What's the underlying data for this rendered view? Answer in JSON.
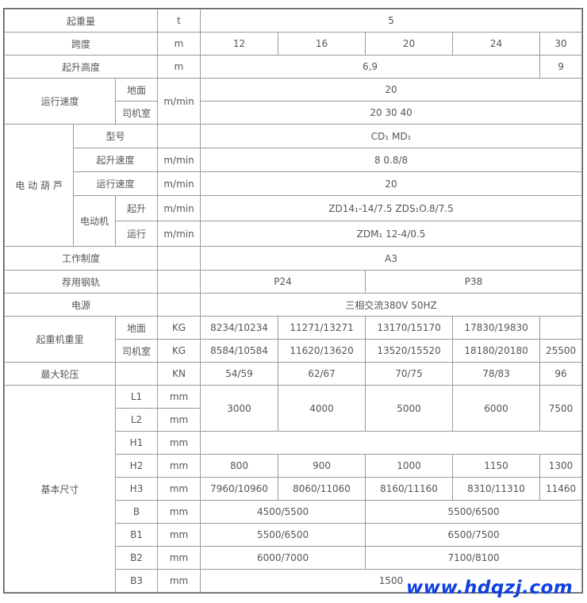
{
  "rows": [
    [
      "起重量",
      "t",
      "5"
    ],
    [
      "跨度",
      "m",
      "12",
      "16",
      "20",
      "24",
      "30"
    ],
    [
      "起升高度",
      "m",
      "6,9",
      "9"
    ],
    [
      "运行速度",
      "地面",
      "m/min",
      "20"
    ],
    [
      "司机室",
      "20 30 40"
    ],
    [
      "电 动 葫 芦",
      "型号",
      "",
      "CD₁ MD₁"
    ],
    [
      "起升速度",
      "m/min",
      "8 0.8/8"
    ],
    [
      "运行速度",
      "m/min",
      "20"
    ],
    [
      "电动机",
      "起升",
      "m/min",
      "ZD14₁-14/7.5 ZDS₁O.8/7.5"
    ],
    [
      "运行",
      "m/min",
      "ZDM₁ 12-4/0.5"
    ],
    [
      "工作制度",
      "",
      "A3"
    ],
    [
      "荐用钢轨",
      "",
      "P24",
      "P38"
    ],
    [
      "电源",
      "",
      "三相交流380V 50HZ"
    ],
    [
      "起重机重里",
      "地面",
      "KG",
      "8234/10234",
      "11271/13271",
      "13170/15170",
      "17830/19830",
      ""
    ],
    [
      "司机室",
      "KG",
      "8584/10584",
      "11620/13620",
      "13520/15520",
      "18180/20180",
      "25500"
    ],
    [
      "最大轮压",
      "",
      "KN",
      "54/59",
      "62/67",
      "70/75",
      "78/83",
      "96"
    ],
    [
      "基本尺寸",
      "L1",
      "mm",
      "3000",
      "4000",
      "5000",
      "6000",
      "7500"
    ],
    [
      "L2",
      "mm"
    ],
    [
      "H1",
      "mm",
      ""
    ],
    [
      "H2",
      "mm",
      "800",
      "900",
      "1000",
      "1150",
      "1300"
    ],
    [
      "H3",
      "mm",
      "7960/10960",
      "8060/11060",
      "8160/11160",
      "8310/11310",
      "11460"
    ],
    [
      "B",
      "mm",
      "4500/5500",
      "5500/6500"
    ],
    [
      "B1",
      "mm",
      "5500/6500",
      "6500/7500"
    ],
    [
      "B2",
      "mm",
      "6000/7000",
      "7100/8100"
    ],
    [
      "B3",
      "mm",
      "1500"
    ]
  ],
  "watermark": "www.hdqzj.com",
  "colors": {
    "text": "#555555",
    "border": "#9a9a9a",
    "watermark": "#1040e0"
  }
}
